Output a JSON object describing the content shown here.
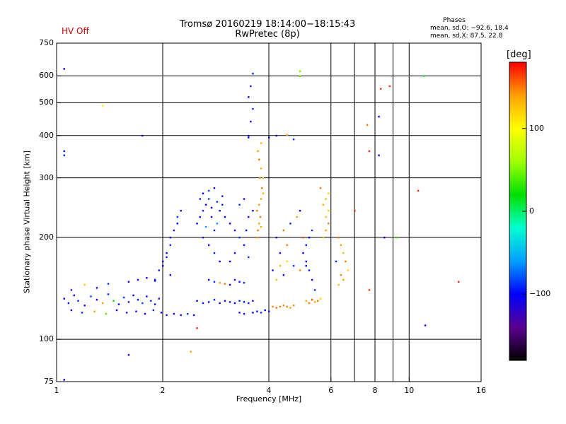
{
  "header": {
    "status": "HV Off",
    "status_color": "#cc0000",
    "title_line1": "Tromsø 20160219 18:14:00−18:15:43",
    "title_line2": "RwPretec (8p)"
  },
  "phases_box": {
    "title": "Phases",
    "line_o": "mean, sd,O: −92.6, 18.4",
    "line_x": "mean, sd,X:  87.5, 22.8"
  },
  "colorbar": {
    "label": "[deg]",
    "range": [
      -180,
      180
    ],
    "ticks": [
      {
        "value": 100,
        "label": "100"
      },
      {
        "value": 0,
        "label": "0"
      },
      {
        "value": -100,
        "label": "−100"
      }
    ],
    "colormap": [
      "#000000",
      "#5a0090",
      "#0000ff",
      "#00a0ff",
      "#00ffd0",
      "#00e000",
      "#a0ff00",
      "#ffff00",
      "#ffa000",
      "#ff0000"
    ]
  },
  "chart_data": {
    "type": "scatter",
    "xlabel": "Frequency [MHz]",
    "ylabel": "Stationary phase Virtual Height [km]",
    "x_scale": "log",
    "y_scale": "log",
    "xlim": [
      1,
      16
    ],
    "ylim": [
      75,
      750
    ],
    "grid": true,
    "x_ticks": [
      {
        "value": 1,
        "label": "1"
      },
      {
        "value": 2,
        "label": "2"
      },
      {
        "value": 4,
        "label": "4"
      },
      {
        "value": 6,
        "label": "6"
      },
      {
        "value": 8,
        "label": "8"
      },
      {
        "value": 10,
        "label": "10"
      },
      {
        "value": 16,
        "label": "16"
      }
    ],
    "x_grid": [
      2,
      4,
      6,
      7,
      8,
      9,
      10
    ],
    "y_ticks": [
      {
        "value": 75,
        "label": "75"
      },
      {
        "value": 100,
        "label": "100"
      },
      {
        "value": 200,
        "label": "200"
      },
      {
        "value": 300,
        "label": "300"
      },
      {
        "value": 400,
        "label": "400"
      },
      {
        "value": 500,
        "label": "500"
      },
      {
        "value": 600,
        "label": "600"
      },
      {
        "value": 750,
        "label": "750"
      }
    ],
    "y_grid": [
      100,
      200,
      300,
      400,
      500,
      600
    ],
    "points": [
      [
        1.05,
        132,
        -100
      ],
      [
        1.08,
        128,
        -95
      ],
      [
        1.12,
        135,
        -110
      ],
      [
        1.15,
        130,
        -90
      ],
      [
        1.2,
        126,
        -100
      ],
      [
        1.25,
        134,
        -85
      ],
      [
        1.3,
        131,
        -105
      ],
      [
        1.35,
        128,
        140
      ],
      [
        1.4,
        136,
        -95
      ],
      [
        1.45,
        130,
        20
      ],
      [
        1.5,
        127,
        -100
      ],
      [
        1.55,
        133,
        -90
      ],
      [
        1.6,
        129,
        -110
      ],
      [
        1.65,
        135,
        -100
      ],
      [
        1.7,
        131,
        -95
      ],
      [
        1.75,
        128,
        -85
      ],
      [
        1.8,
        134,
        -100
      ],
      [
        1.85,
        130,
        -90
      ],
      [
        1.9,
        127,
        -105
      ],
      [
        1.95,
        132,
        -95
      ],
      [
        1.1,
        122,
        -100
      ],
      [
        1.18,
        120,
        -90
      ],
      [
        1.28,
        121,
        140
      ],
      [
        1.38,
        119,
        40
      ],
      [
        1.48,
        122,
        -100
      ],
      [
        1.58,
        120,
        -95
      ],
      [
        1.68,
        121,
        -110
      ],
      [
        1.78,
        119,
        -100
      ],
      [
        1.88,
        122,
        -90
      ],
      [
        1.98,
        120,
        -100
      ],
      [
        2.05,
        118,
        -95
      ],
      [
        2.15,
        119,
        -100
      ],
      [
        2.25,
        118,
        -105
      ],
      [
        2.35,
        119,
        -90
      ],
      [
        2.45,
        118,
        -100
      ],
      [
        1.1,
        140,
        -95
      ],
      [
        1.2,
        145,
        120
      ],
      [
        1.3,
        142,
        -100
      ],
      [
        1.4,
        146,
        -90
      ],
      [
        1.6,
        148,
        -100
      ],
      [
        1.7,
        150,
        -95
      ],
      [
        1.8,
        152,
        -110
      ],
      [
        1.9,
        149,
        -100
      ],
      [
        1.9,
        150,
        -100
      ],
      [
        1.95,
        160,
        -95
      ],
      [
        2.0,
        170,
        -105
      ],
      [
        2.05,
        180,
        -100
      ],
      [
        2.1,
        190,
        -90
      ],
      [
        2.1,
        200,
        -100
      ],
      [
        2.15,
        210,
        -95
      ],
      [
        2.2,
        220,
        -100
      ],
      [
        2.2,
        230,
        -85
      ],
      [
        2.25,
        240,
        -100
      ],
      [
        2.0,
        165,
        -110
      ],
      [
        2.05,
        175,
        -95
      ],
      [
        2.1,
        155,
        -100
      ],
      [
        2.5,
        220,
        -100
      ],
      [
        2.55,
        230,
        -95
      ],
      [
        2.6,
        240,
        -90
      ],
      [
        2.65,
        250,
        -100
      ],
      [
        2.7,
        260,
        -85
      ],
      [
        2.75,
        230,
        -100
      ],
      [
        2.8,
        210,
        -95
      ],
      [
        2.85,
        220,
        -60
      ],
      [
        2.9,
        240,
        -100
      ],
      [
        2.95,
        250,
        -90
      ],
      [
        3.0,
        230,
        -100
      ],
      [
        2.6,
        200,
        -95
      ],
      [
        2.7,
        190,
        -100
      ],
      [
        2.8,
        180,
        -90
      ],
      [
        2.9,
        170,
        -100
      ],
      [
        2.65,
        215,
        -60
      ],
      [
        2.75,
        245,
        -100
      ],
      [
        2.85,
        255,
        -90
      ],
      [
        2.95,
        265,
        -100
      ],
      [
        2.55,
        260,
        -95
      ],
      [
        2.6,
        270,
        -100
      ],
      [
        2.7,
        275,
        -85
      ],
      [
        2.8,
        280,
        -100
      ],
      [
        3.1,
        220,
        -100
      ],
      [
        3.2,
        210,
        -95
      ],
      [
        3.3,
        200,
        -90
      ],
      [
        3.4,
        190,
        -100
      ],
      [
        3.5,
        230,
        -95
      ],
      [
        3.6,
        240,
        -100
      ],
      [
        3.3,
        250,
        -90
      ],
      [
        3.4,
        260,
        -100
      ],
      [
        3.2,
        180,
        -95
      ],
      [
        3.1,
        170,
        -100
      ],
      [
        3.5,
        175,
        -90
      ],
      [
        3.45,
        210,
        -100
      ],
      [
        3.7,
        200,
        145
      ],
      [
        3.72,
        210,
        150
      ],
      [
        3.75,
        220,
        140
      ],
      [
        3.78,
        230,
        150
      ],
      [
        3.8,
        215,
        135
      ],
      [
        3.7,
        240,
        150
      ],
      [
        3.75,
        250,
        145
      ],
      [
        3.8,
        260,
        140
      ],
      [
        3.85,
        270,
        130
      ],
      [
        3.82,
        280,
        150
      ],
      [
        3.77,
        300,
        140
      ],
      [
        3.8,
        320,
        130
      ],
      [
        3.75,
        340,
        150
      ],
      [
        3.72,
        360,
        140
      ],
      [
        3.8,
        380,
        130
      ],
      [
        3.85,
        300,
        120
      ],
      [
        2.7,
        150,
        -100
      ],
      [
        2.8,
        148,
        -90
      ],
      [
        2.9,
        147,
        140
      ],
      [
        3.0,
        146,
        150
      ],
      [
        3.1,
        145,
        -100
      ],
      [
        3.2,
        150,
        -95
      ],
      [
        3.3,
        148,
        -100
      ],
      [
        3.4,
        147,
        -90
      ],
      [
        2.5,
        130,
        -100
      ],
      [
        2.6,
        128,
        -95
      ],
      [
        2.7,
        129,
        -100
      ],
      [
        2.8,
        131,
        -90
      ],
      [
        2.9,
        128,
        -100
      ],
      [
        3.0,
        130,
        -95
      ],
      [
        3.1,
        129,
        -105
      ],
      [
        3.2,
        128,
        -100
      ],
      [
        3.3,
        130,
        -90
      ],
      [
        3.4,
        129,
        -100
      ],
      [
        3.5,
        128,
        -95
      ],
      [
        3.6,
        130,
        -100
      ],
      [
        3.6,
        120,
        -100
      ],
      [
        3.7,
        121,
        -95
      ],
      [
        3.8,
        120,
        -90
      ],
      [
        3.9,
        122,
        -100
      ],
      [
        4.0,
        121,
        -95
      ],
      [
        3.4,
        119,
        -100
      ],
      [
        3.3,
        120,
        -95
      ],
      [
        4.1,
        125,
        150
      ],
      [
        4.2,
        124,
        155
      ],
      [
        4.3,
        125,
        150
      ],
      [
        4.4,
        126,
        145
      ],
      [
        4.5,
        125,
        150
      ],
      [
        4.6,
        124,
        140
      ],
      [
        4.7,
        126,
        150
      ],
      [
        4.1,
        160,
        -100
      ],
      [
        4.3,
        165,
        130
      ],
      [
        4.5,
        170,
        120
      ],
      [
        4.7,
        165,
        -90
      ],
      [
        4.9,
        160,
        150
      ],
      [
        5.1,
        165,
        -100
      ],
      [
        4.2,
        150,
        130
      ],
      [
        4.4,
        155,
        -100
      ],
      [
        4.2,
        200,
        -100
      ],
      [
        4.4,
        210,
        150
      ],
      [
        4.6,
        220,
        -90
      ],
      [
        4.8,
        230,
        140
      ],
      [
        4.9,
        240,
        -100
      ],
      [
        5.0,
        200,
        160
      ],
      [
        4.3,
        180,
        -95
      ],
      [
        4.5,
        190,
        150
      ],
      [
        5.1,
        130,
        140
      ],
      [
        5.2,
        128,
        150
      ],
      [
        5.3,
        131,
        160
      ],
      [
        5.4,
        129,
        140
      ],
      [
        5.5,
        130,
        150
      ],
      [
        5.6,
        132,
        120
      ],
      [
        5.0,
        180,
        -100
      ],
      [
        5.1,
        190,
        -95
      ],
      [
        5.2,
        200,
        -100
      ],
      [
        5.3,
        210,
        -90
      ],
      [
        5.1,
        170,
        -100
      ],
      [
        5.2,
        160,
        -95
      ],
      [
        5.3,
        150,
        -100
      ],
      [
        5.4,
        140,
        -90
      ],
      [
        5.7,
        200,
        130
      ],
      [
        5.8,
        210,
        140
      ],
      [
        5.9,
        220,
        150
      ],
      [
        5.8,
        230,
        130
      ],
      [
        5.9,
        240,
        120
      ],
      [
        5.7,
        250,
        140
      ],
      [
        5.8,
        260,
        130
      ],
      [
        5.9,
        270,
        120
      ],
      [
        5.6,
        280,
        150
      ],
      [
        6.3,
        200,
        150
      ],
      [
        6.4,
        190,
        140
      ],
      [
        6.5,
        180,
        130
      ],
      [
        6.6,
        170,
        150
      ],
      [
        6.7,
        160,
        120
      ],
      [
        6.5,
        150,
        140
      ],
      [
        6.3,
        145,
        130
      ],
      [
        6.4,
        155,
        150
      ],
      [
        6.2,
        170,
        -90
      ],
      [
        3.5,
        395,
        -100
      ],
      [
        3.55,
        440,
        -95
      ],
      [
        3.6,
        480,
        -90
      ],
      [
        3.5,
        520,
        -100
      ],
      [
        3.55,
        560,
        -95
      ],
      [
        3.6,
        610,
        -90
      ],
      [
        1.05,
        630,
        -100
      ],
      [
        1.05,
        360,
        -95
      ],
      [
        1.05,
        350,
        -90
      ],
      [
        1.05,
        76,
        -100
      ],
      [
        1.35,
        490,
        100
      ],
      [
        1.6,
        90,
        -100
      ],
      [
        2.4,
        92,
        140
      ],
      [
        1.75,
        400,
        -100
      ],
      [
        2.5,
        108,
        170
      ],
      [
        3.5,
        400,
        -95
      ],
      [
        4.2,
        400,
        -100
      ],
      [
        4.5,
        402,
        140
      ],
      [
        4.7,
        390,
        -90
      ],
      [
        4.0,
        395,
        -100
      ],
      [
        4.9,
        600,
        40
      ],
      [
        4.9,
        620,
        50
      ],
      [
        7.7,
        360,
        170
      ],
      [
        7.7,
        140,
        170
      ],
      [
        8.2,
        455,
        -100
      ],
      [
        8.3,
        550,
        170
      ],
      [
        8.8,
        560,
        170
      ],
      [
        8.2,
        350,
        -100
      ],
      [
        9.2,
        200,
        30
      ],
      [
        11.0,
        600,
        20
      ],
      [
        11.1,
        110,
        -100
      ],
      [
        10.6,
        275,
        170
      ],
      [
        13.8,
        148,
        170
      ],
      [
        8.5,
        200,
        -100
      ],
      [
        7.6,
        430,
        150
      ],
      [
        7.0,
        240,
        170
      ]
    ]
  }
}
